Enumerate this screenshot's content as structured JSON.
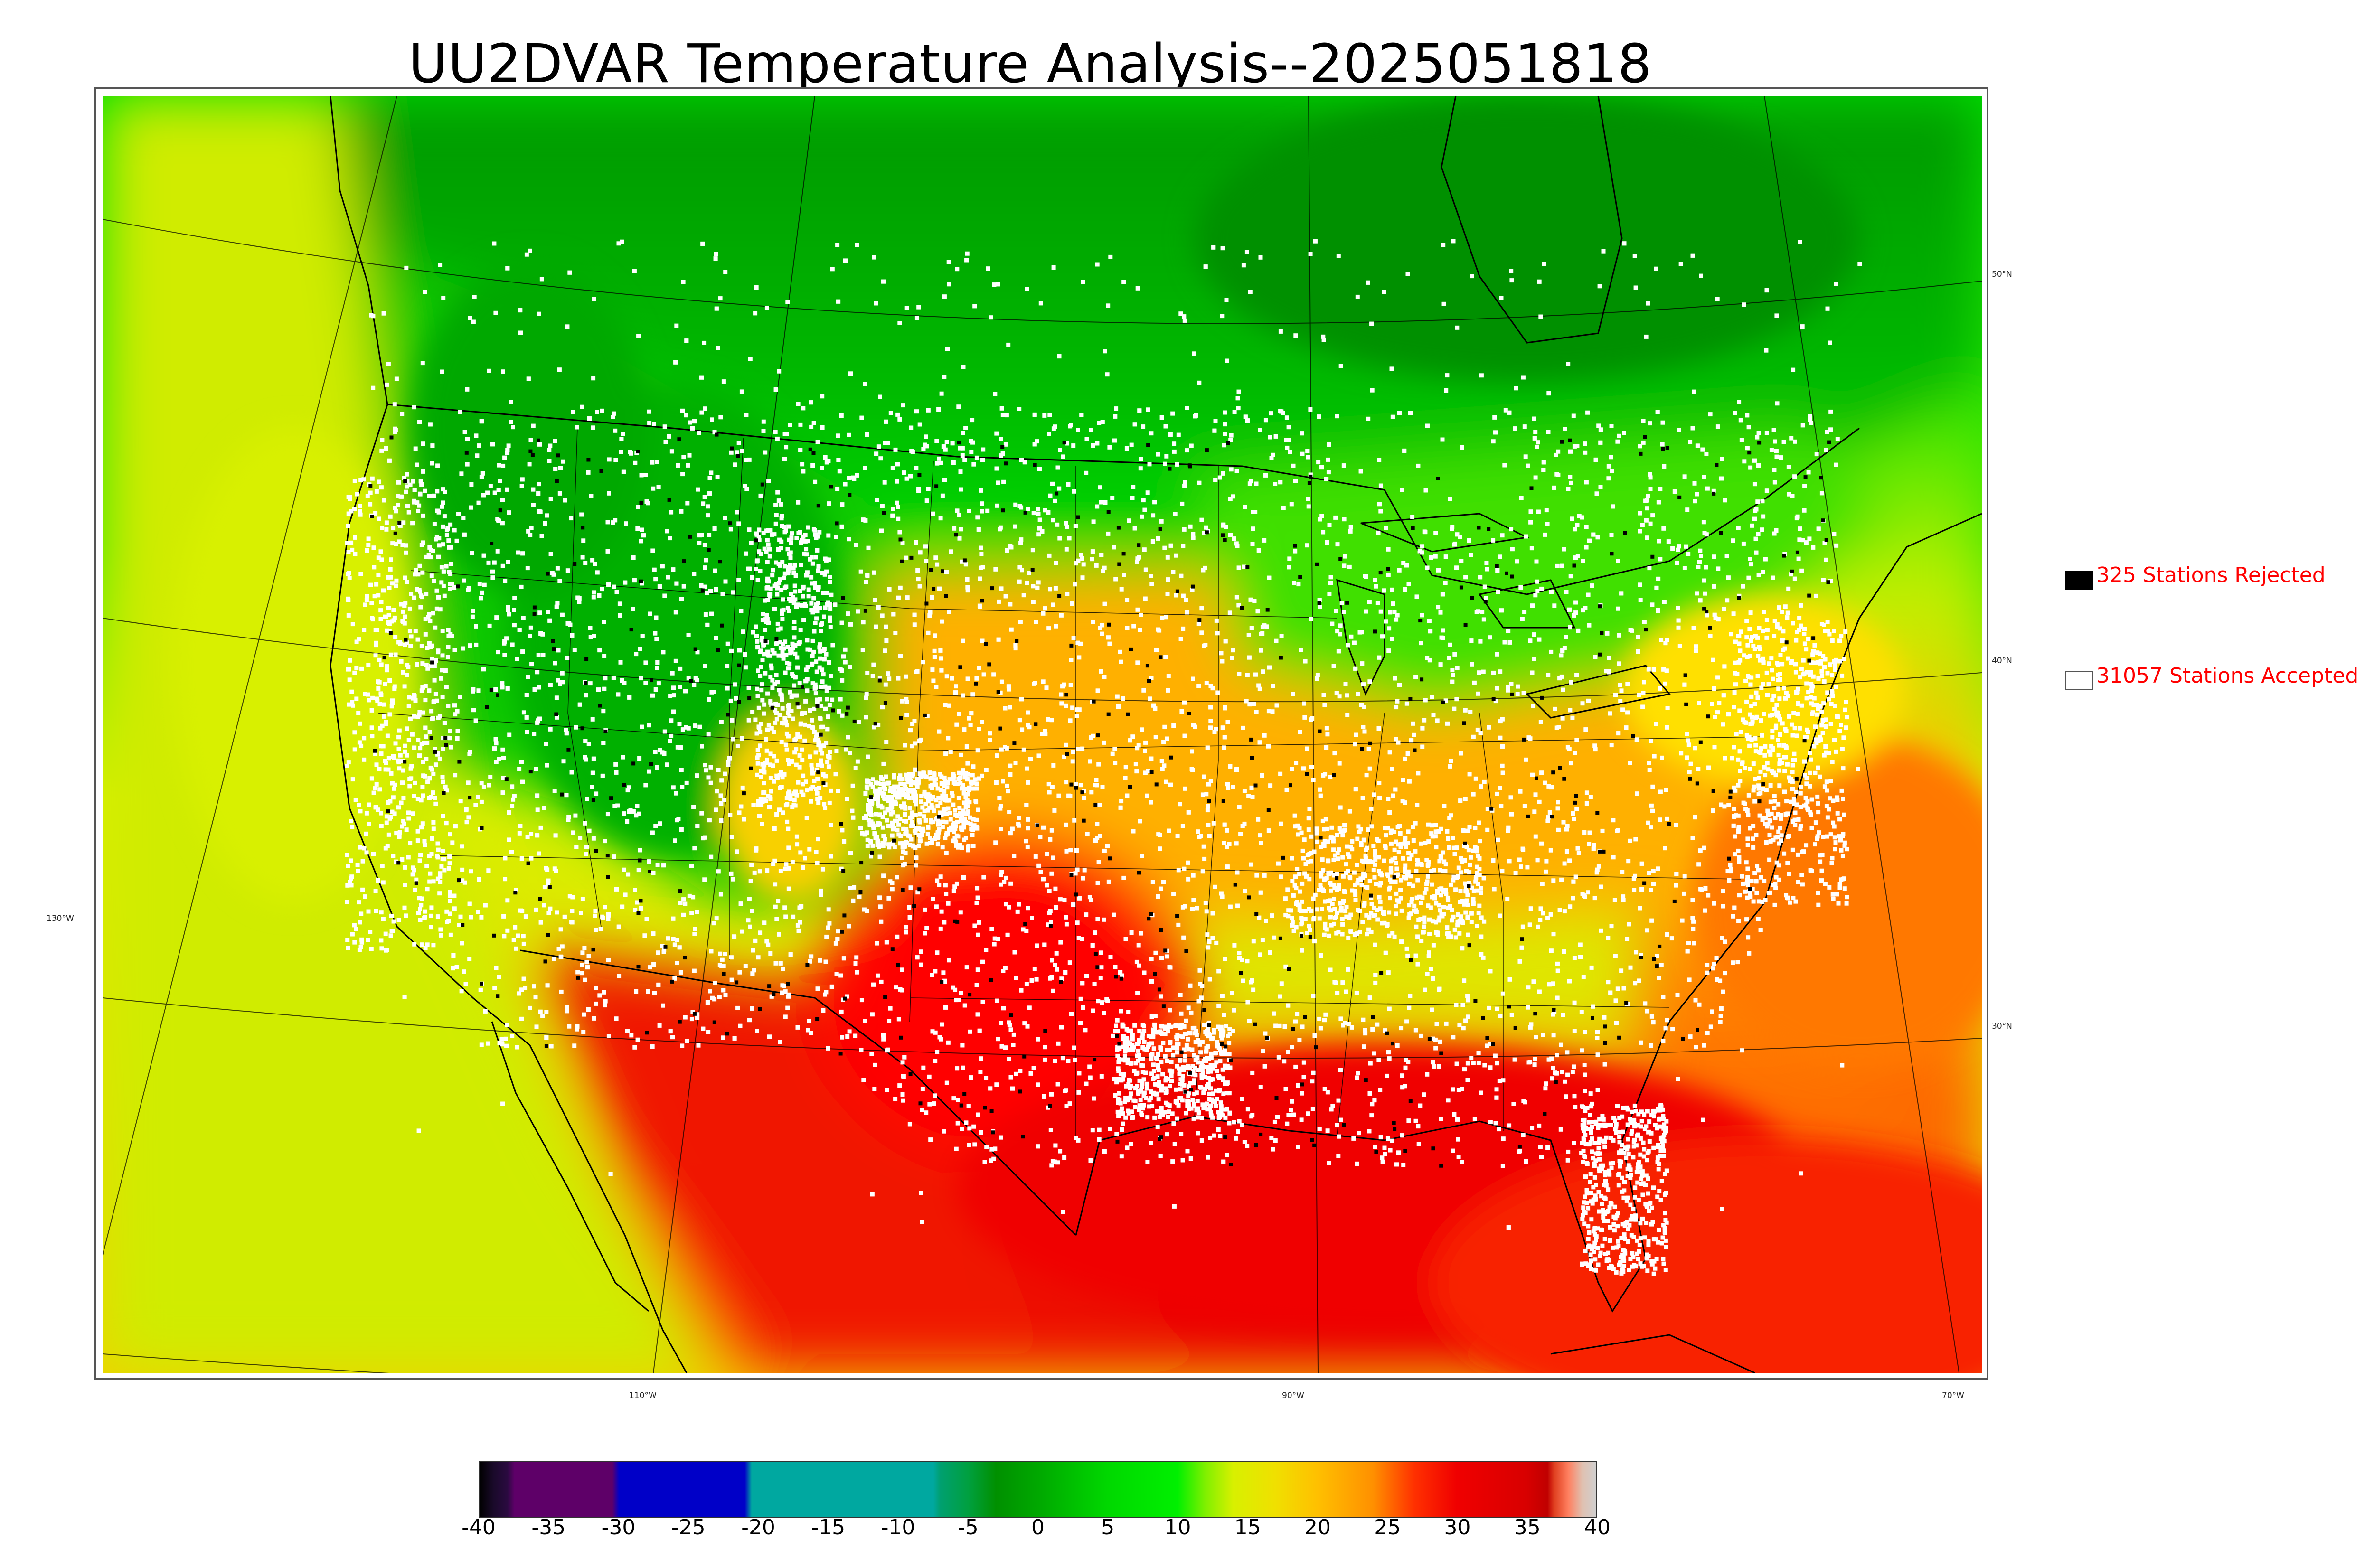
{
  "title": "UU2DVAR Temperature Analysis--2025051818",
  "legend": {
    "rejected": {
      "label": "325 Stations Rejected",
      "color": "#000000"
    },
    "accepted": {
      "label": "31057 Stations Accepted",
      "color": "#ffffff"
    }
  },
  "grid_labels": {
    "lat": [
      "50°N",
      "40°N",
      "30°N"
    ],
    "lon": [
      "130°W",
      "110°W",
      "90°W",
      "70°W"
    ]
  },
  "colorbar": {
    "ticks": [
      "-40",
      "-35",
      "-30",
      "-25",
      "-20",
      "-15",
      "-10",
      "-5",
      "0",
      "5",
      "10",
      "15",
      "20",
      "25",
      "30",
      "35",
      "40"
    ],
    "min": -40,
    "max": 40,
    "stops": [
      {
        "v": -40,
        "c": "#000000"
      },
      {
        "v": -39,
        "c": "#1a0a2a"
      },
      {
        "v": -38,
        "c": "#2a0a40"
      },
      {
        "v": -37.5,
        "c": "#5e0068"
      },
      {
        "v": -30.5,
        "c": "#5e0068"
      },
      {
        "v": -30,
        "c": "#0000c8"
      },
      {
        "v": -21,
        "c": "#0000c8"
      },
      {
        "v": -20.5,
        "c": "#00a8a0"
      },
      {
        "v": -7.5,
        "c": "#00a8a0"
      },
      {
        "v": -7,
        "c": "#00a070"
      },
      {
        "v": -5,
        "c": "#00a040"
      },
      {
        "v": -3,
        "c": "#009000"
      },
      {
        "v": 0,
        "c": "#00a800"
      },
      {
        "v": 5,
        "c": "#00d800"
      },
      {
        "v": 10,
        "c": "#00f000"
      },
      {
        "v": 12,
        "c": "#80f000"
      },
      {
        "v": 14,
        "c": "#d8f000"
      },
      {
        "v": 17,
        "c": "#f0e000"
      },
      {
        "v": 20,
        "c": "#ffc000"
      },
      {
        "v": 24,
        "c": "#ff9000"
      },
      {
        "v": 27,
        "c": "#ff3000"
      },
      {
        "v": 30,
        "c": "#f00000"
      },
      {
        "v": 35,
        "c": "#d80000"
      },
      {
        "v": 36.5,
        "c": "#c00000"
      },
      {
        "v": 37,
        "c": "#e04020"
      },
      {
        "v": 38,
        "c": "#ff8060"
      },
      {
        "v": 39,
        "c": "#e0c0b0"
      },
      {
        "v": 40,
        "c": "#d0d0d0"
      }
    ]
  },
  "map_colors": {
    "ocean_west": "#d8f000",
    "canada_north": "#00a800",
    "canada_mid": "#00d800",
    "mountain_west": "#00c000",
    "plains": "#f0c800",
    "south": "#f02000",
    "gulf": "#f00000",
    "atlantic": "#ffa000",
    "mexico": "#ff3000",
    "greatlakes": "#00d800",
    "station_accepted": "#ffffff",
    "station_rejected": "#000000",
    "borders": "#000000",
    "graticule": "#000000"
  }
}
